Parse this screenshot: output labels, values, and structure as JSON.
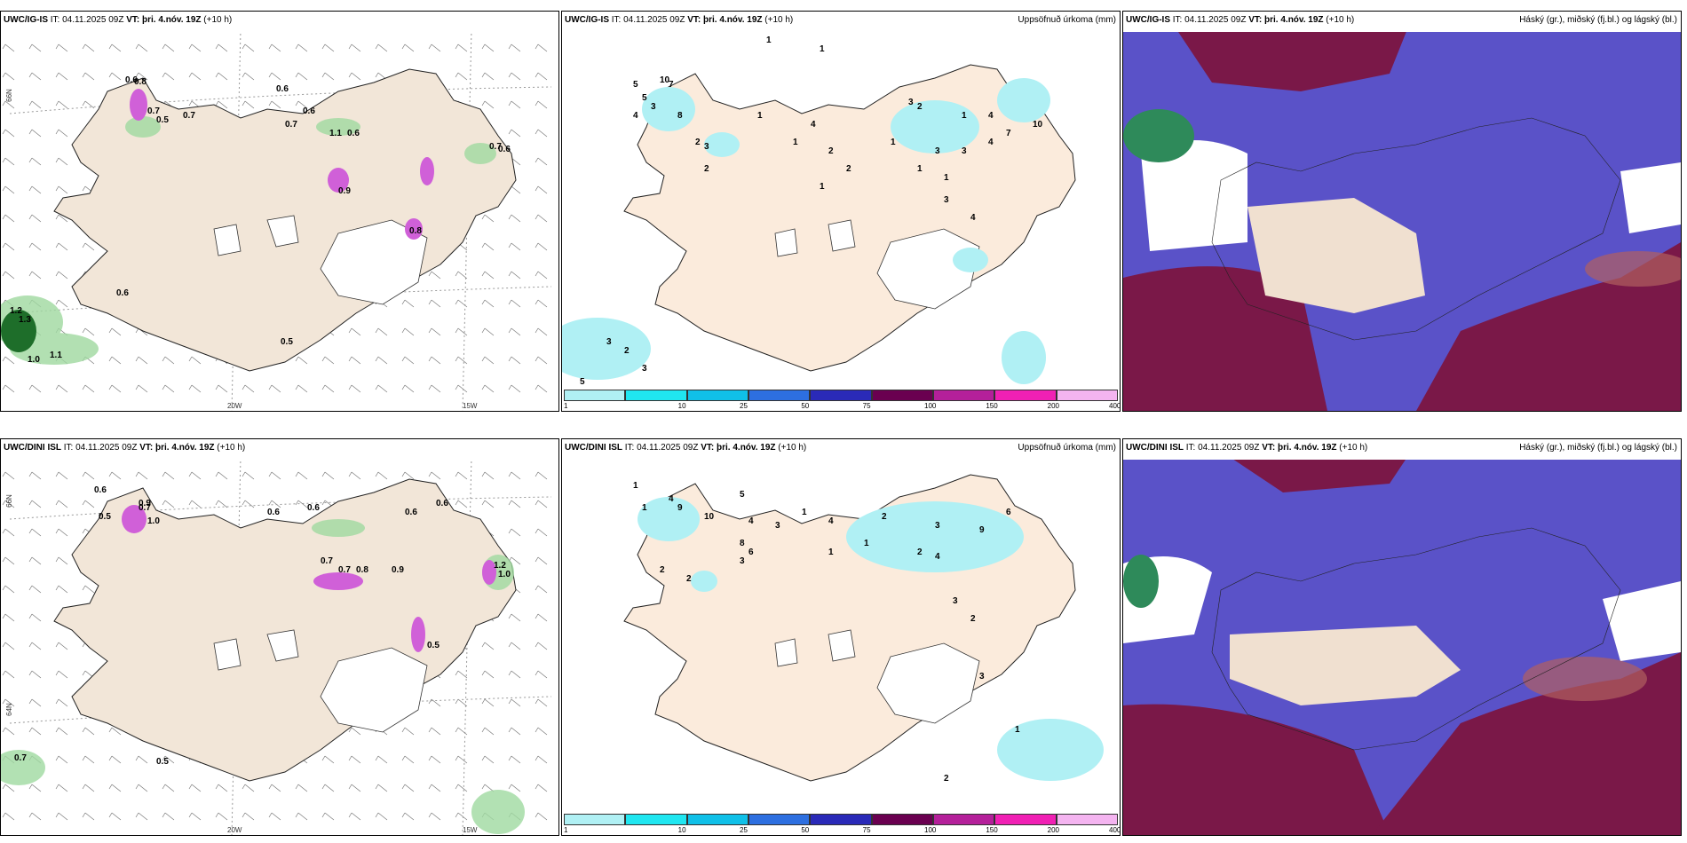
{
  "rows": [
    {
      "model": "UWC/IG-IS",
      "it_label": "IT:",
      "it": "04.11.2025 09Z",
      "vt_label": "VT:",
      "vt": "þri. 4.nóv. 19Z",
      "lead": "(+10 h)"
    },
    {
      "model": "UWC/DINI ISL",
      "it_label": "IT:",
      "it": "04.11.2025 09Z",
      "vt_label": "VT:",
      "vt": "þri. 4.nóv. 19Z",
      "lead": "(+10 h)"
    }
  ],
  "precip_title": "Uppsöfnuð úrkoma (mm)",
  "cloud_title": "Háský (gr.), miðský (fj.bl.) og lágský (bl.)",
  "axes": {
    "lat": "66N",
    "lon_left": "20W",
    "lon_right": "15W",
    "lat_low": "64N"
  },
  "colorbar": {
    "ticks": [
      "1",
      "10",
      "25",
      "50",
      "75",
      "100",
      "150",
      "200",
      "400"
    ],
    "colors": [
      "#b0f0f4",
      "#20e6f0",
      "#10c0e8",
      "#2d6fe0",
      "#2a2ab8",
      "#6a0050",
      "#b4209a",
      "#f020b4",
      "#f4b4f0"
    ]
  },
  "wind_values_top": [
    "0.6",
    "0.8",
    "0.7",
    "0.5",
    "0.7",
    "0.6",
    "0.7",
    "0.6",
    "1.1",
    "0.6",
    "0.7",
    "0.6",
    "1.3",
    "1.2",
    "1.0",
    "1.1",
    "0.6",
    "0.5",
    "0.9",
    "0.8"
  ],
  "wind_values_bottom": [
    "0.6",
    "0.5",
    "0.9",
    "0.7",
    "1.0",
    "0.6",
    "0.7",
    "0.6",
    "0.6",
    "0.6",
    "1.2",
    "1.0",
    "0.7",
    "0.5",
    "0.7",
    "0.8",
    "0.9",
    "0.5"
  ],
  "precip_values_top": [
    "1",
    "1",
    "5",
    "10",
    "7",
    "8",
    "3",
    "5",
    "4",
    "2",
    "3",
    "2",
    "1",
    "4",
    "1",
    "2",
    "2",
    "1",
    "3",
    "2",
    "10",
    "7",
    "1",
    "4",
    "3",
    "3",
    "4",
    "1",
    "1",
    "1",
    "3",
    "4",
    "3",
    "2",
    "3",
    "5"
  ],
  "precip_values_bottom": [
    "1",
    "1",
    "4",
    "9",
    "10",
    "8",
    "6",
    "3",
    "2",
    "2",
    "5",
    "4",
    "3",
    "1",
    "4",
    "2",
    "3",
    "9",
    "6",
    "4",
    "2",
    "1",
    "1",
    "3",
    "2",
    "3",
    "1",
    "2"
  ]
}
